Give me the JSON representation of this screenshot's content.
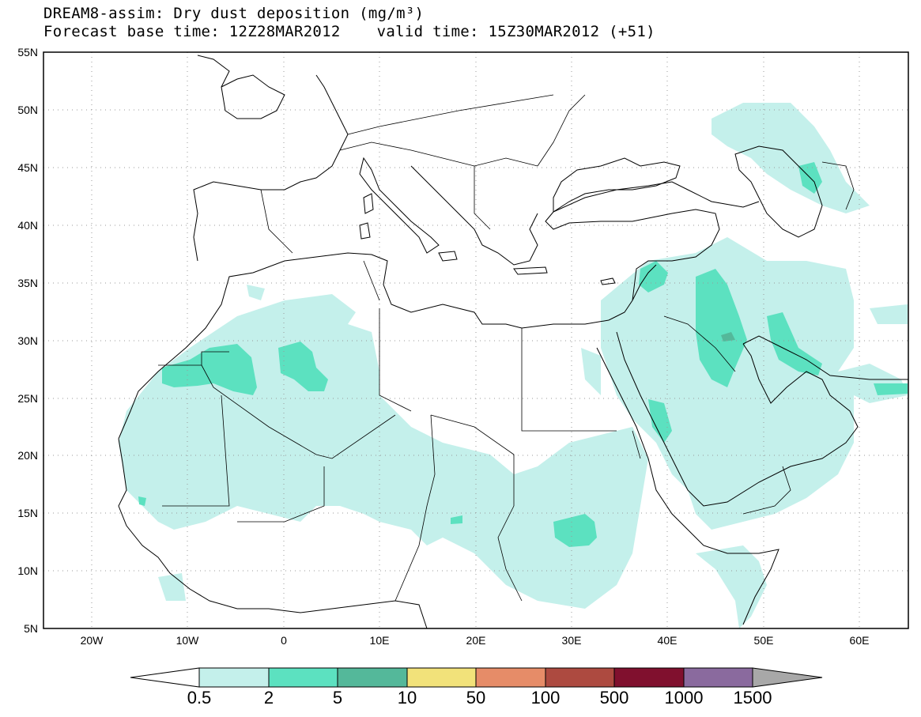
{
  "title": {
    "line1": "DREAM8-assim: Dry dust deposition (mg/m³)",
    "line2_left": "Forecast base time: 12Z28MAR2012",
    "line2_right": "valid time: 15Z30MAR2012 (+51)"
  },
  "axes": {
    "lat_labels": [
      "55N",
      "50N",
      "45N",
      "40N",
      "35N",
      "30N",
      "25N",
      "20N",
      "15N",
      "10N",
      "5N"
    ],
    "lon_labels": [
      "20W",
      "10W",
      "0",
      "10E",
      "20E",
      "30E",
      "40E",
      "50E",
      "60E"
    ],
    "lon_range": [
      -25,
      65
    ],
    "lat_range": [
      5,
      55
    ],
    "grid": "dotted"
  },
  "legend": {
    "labels": [
      "0.5",
      "2",
      "5",
      "10",
      "50",
      "100",
      "500",
      "1000",
      "1500"
    ],
    "colors": [
      "#ffffff",
      "#c4f0eb",
      "#5ce1c0",
      "#54b89a",
      "#f2e27a",
      "#e68c68",
      "#ad4a40",
      "#80102e",
      "#8a6a9e",
      "#a8a8a8"
    ],
    "placement": "bottom"
  },
  "colors": {
    "light": "#c4f0eb",
    "medium": "#5ce1c0",
    "dark": "#54b89a"
  }
}
